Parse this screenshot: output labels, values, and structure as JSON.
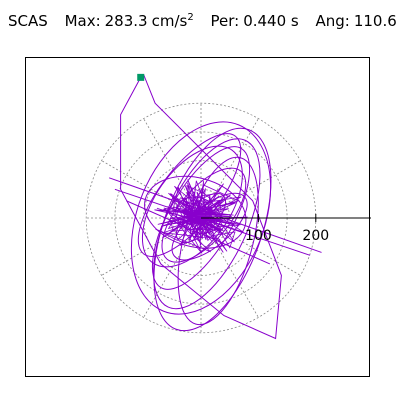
{
  "header": {
    "component": "SCAS",
    "max_label": "Max:",
    "max_value": "283.3",
    "max_units": "cm/s",
    "max_units_exp": "2",
    "per_label": "Per:",
    "per_value": "0.440 s",
    "ang_label": "Ang:",
    "ang_value": "110.6"
  },
  "chart_data": {
    "type": "line",
    "title": "SCAS  Max: 283.3 cm/s² Per: 0.440 s Ang: 110.6",
    "polar_grid_radii": [
      50,
      100,
      150,
      200
    ],
    "tick_labels": [
      "100",
      "200"
    ],
    "grid": true,
    "colors": {
      "trace": "#8800cc",
      "grid": "#888888",
      "marker": "#009966",
      "axis": "#000000"
    },
    "end_marker": {
      "x": -105,
      "y": 245
    },
    "trace_sketch": [
      {
        "x": -105,
        "y": 245
      },
      {
        "x": -140,
        "y": 180
      },
      {
        "x": -140,
        "y": 50
      },
      {
        "x": -70,
        "y": -80
      },
      {
        "x": 40,
        "y": -170
      },
      {
        "x": 130,
        "y": -210
      },
      {
        "x": 140,
        "y": -100
      },
      {
        "x": 90,
        "y": 30
      },
      {
        "x": 0,
        "y": 120
      },
      {
        "x": -80,
        "y": 200
      },
      {
        "x": -100,
        "y": 250
      }
    ]
  }
}
